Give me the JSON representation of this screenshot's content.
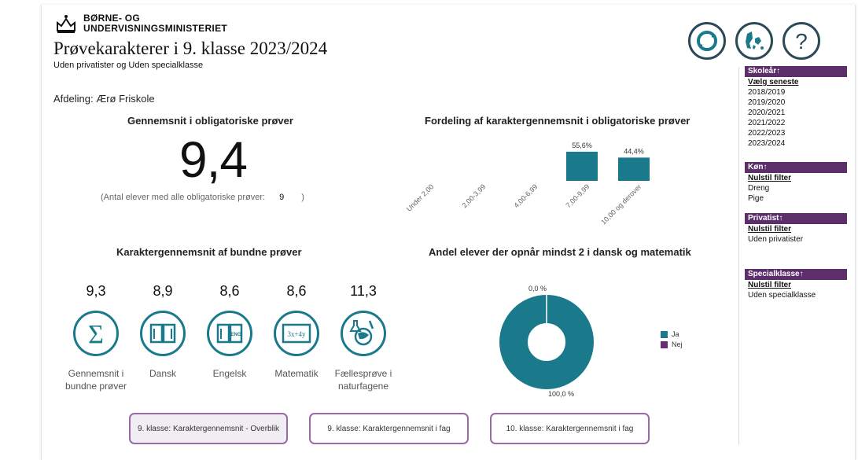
{
  "header": {
    "ministry_line1": "BØRNE- OG",
    "ministry_line2": "UNDERVISNINGSMINISTERIET",
    "title": "Prøvekarakterer i 9. klasse 2023/2024",
    "subtitle": "Uden privatister og Uden specialklasse"
  },
  "top_icons": [
    "refresh-icon",
    "denmark-map-icon",
    "help-icon"
  ],
  "afdeling": "Afdeling: Ærø Friskole",
  "overall": {
    "title": "Gennemsnit i obligatoriske prøver",
    "value": "9,4",
    "antal_label": "(Antal elever med alle obligatoriske prøver:",
    "antal_value": "9",
    "antal_close": ")"
  },
  "distribution": {
    "title": "Fordeling af karaktergennemsnit i obligatoriske prøver"
  },
  "chart_data": {
    "type": "bar",
    "categories": [
      "Under 2,00",
      "2,00-3,99",
      "4,00-6,99",
      "7,00-9,99",
      "10,00 og derover"
    ],
    "values": [
      0,
      0,
      0,
      55.6,
      44.4
    ],
    "value_labels": [
      "",
      "",
      "",
      "55,6%",
      "44,4%"
    ],
    "ylim": [
      0,
      60
    ],
    "color": "#1a7a8c"
  },
  "bundne": {
    "title": "Karaktergennemsnit af bundne prøver",
    "subjects": [
      {
        "value": "9,3",
        "label": "Gennemsnit i bundne prøver",
        "icon": "sigma-icon"
      },
      {
        "value": "8,9",
        "label": "Dansk",
        "icon": "open-book-icon"
      },
      {
        "value": "8,6",
        "label": "Engelsk",
        "icon": "english-book-icon"
      },
      {
        "value": "8,6",
        "label": "Matematik",
        "icon": "math-board-icon"
      },
      {
        "value": "11,3",
        "label": "Fællesprøve i naturfagene",
        "icon": "science-globe-icon"
      }
    ]
  },
  "andel": {
    "title": "Andel elever der opnår mindst 2 i dansk og matematik",
    "ja_pct": 100,
    "nej_pct": 0,
    "label_top": "0,0 %",
    "label_bottom": "100,0 %",
    "legend_ja": "Ja",
    "legend_nej": "Nej",
    "color_ja": "#1a7a8c",
    "color_nej": "#6a2d72"
  },
  "nav_buttons": [
    "9. klasse: Karaktergennemsnit - Overblik",
    "9. klasse: Karaktergennemsnit i fag",
    "10. klasse: Karaktergennemsnit i fag"
  ],
  "sidebar": {
    "skoleaar": {
      "head": "Skoleår↑",
      "link": "Vælg seneste",
      "items": [
        "2018/2019",
        "2019/2020",
        "2020/2021",
        "2021/2022",
        "2022/2023",
        "2023/2024"
      ]
    },
    "koen": {
      "head": "Køn↑",
      "link": "Nulstil filter",
      "items": [
        "Dreng",
        "Pige"
      ]
    },
    "privatist": {
      "head": "Privatist↑",
      "link": "Nulstil filter",
      "items": [
        "Uden privatister"
      ]
    },
    "specialklasse": {
      "head": "Specialklasse↑",
      "link": "Nulstil filter",
      "items": [
        "Uden specialklasse"
      ]
    }
  }
}
